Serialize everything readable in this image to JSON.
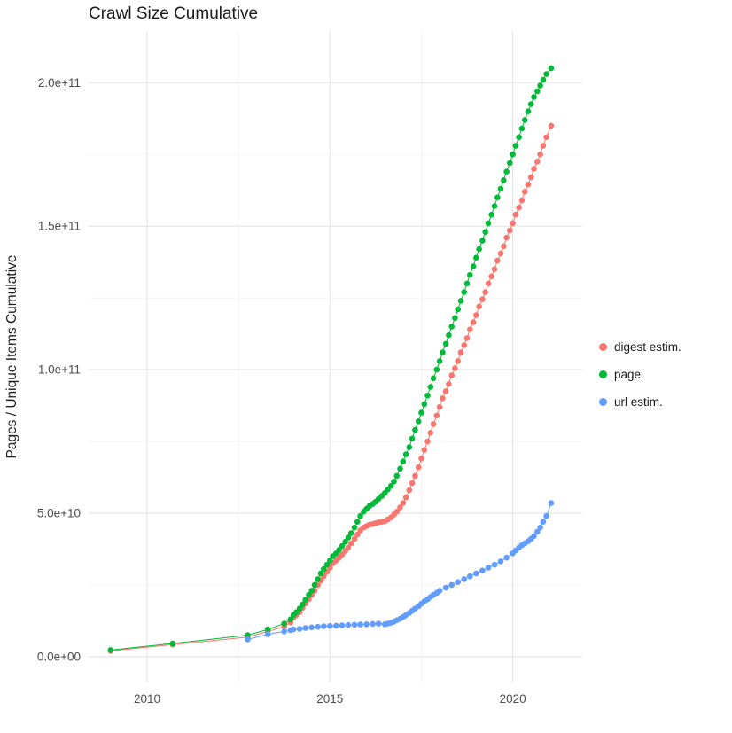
{
  "title": "Crawl Size Cumulative",
  "colors": {
    "background": "#FFFFFF",
    "grid_major": "#E4E4E4",
    "grid_minor": "#F2F2F2",
    "tick_label": "#4D4D4D",
    "axis_title": "#1A1A1A"
  },
  "chart_data": {
    "type": "scatter",
    "title": "Crawl Size Cumulative",
    "xlabel": "",
    "ylabel": "Pages / Unique Items Cumulative",
    "grid": true,
    "legend_position": "right",
    "y_unit": 10000000000.0,
    "y_unit_note": "series point y-values are in units of 1e10 pages",
    "x_range": [
      2008.4,
      2021.9
    ],
    "y_range_e10": [
      -0.9,
      21.8
    ],
    "x_ticks": [
      {
        "v": 2010,
        "label": "2010"
      },
      {
        "v": 2015,
        "label": "2015"
      },
      {
        "v": 2020,
        "label": "2020"
      }
    ],
    "x_minor": [
      2012.5,
      2017.5
    ],
    "y_ticks": [
      {
        "v": 0,
        "label": "0.0e+00"
      },
      {
        "v": 5,
        "label": "5.0e+10"
      },
      {
        "v": 10,
        "label": "1.0e+11"
      },
      {
        "v": 15,
        "label": "1.5e+11"
      },
      {
        "v": 20,
        "label": "2.0e+11"
      }
    ],
    "y_minor": [
      2.5,
      7.5,
      12.5,
      17.5
    ],
    "series": [
      {
        "name": "digest estim.",
        "color": "#F8766D",
        "points": [
          [
            2009.0,
            0.2
          ],
          [
            2010.7,
            0.42
          ],
          [
            2012.75,
            0.68
          ],
          [
            2013.3,
            0.88
          ],
          [
            2013.75,
            1.05
          ],
          [
            2013.92,
            1.2
          ],
          [
            2014.0,
            1.35
          ],
          [
            2014.08,
            1.45
          ],
          [
            2014.17,
            1.55
          ],
          [
            2014.25,
            1.7
          ],
          [
            2014.33,
            1.85
          ],
          [
            2014.42,
            2.0
          ],
          [
            2014.5,
            2.15
          ],
          [
            2014.58,
            2.3
          ],
          [
            2014.67,
            2.5
          ],
          [
            2014.75,
            2.65
          ],
          [
            2014.83,
            2.8
          ],
          [
            2014.92,
            2.95
          ],
          [
            2015.0,
            3.1
          ],
          [
            2015.08,
            3.25
          ],
          [
            2015.17,
            3.35
          ],
          [
            2015.25,
            3.45
          ],
          [
            2015.33,
            3.55
          ],
          [
            2015.42,
            3.68
          ],
          [
            2015.5,
            3.8
          ],
          [
            2015.58,
            3.95
          ],
          [
            2015.67,
            4.1
          ],
          [
            2015.75,
            4.25
          ],
          [
            2015.83,
            4.4
          ],
          [
            2015.92,
            4.5
          ],
          [
            2016.0,
            4.55
          ],
          [
            2016.08,
            4.6
          ],
          [
            2016.17,
            4.62
          ],
          [
            2016.25,
            4.65
          ],
          [
            2016.33,
            4.68
          ],
          [
            2016.42,
            4.7
          ],
          [
            2016.5,
            4.72
          ],
          [
            2016.58,
            4.78
          ],
          [
            2016.67,
            4.85
          ],
          [
            2016.75,
            4.95
          ],
          [
            2016.83,
            5.05
          ],
          [
            2016.92,
            5.2
          ],
          [
            2017.0,
            5.35
          ],
          [
            2017.08,
            5.55
          ],
          [
            2017.17,
            5.8
          ],
          [
            2017.25,
            6.05
          ],
          [
            2017.33,
            6.3
          ],
          [
            2017.42,
            6.6
          ],
          [
            2017.5,
            6.9
          ],
          [
            2017.58,
            7.2
          ],
          [
            2017.67,
            7.5
          ],
          [
            2017.75,
            7.8
          ],
          [
            2017.83,
            8.1
          ],
          [
            2017.92,
            8.4
          ],
          [
            2018.0,
            8.7
          ],
          [
            2018.08,
            9.0
          ],
          [
            2018.17,
            9.25
          ],
          [
            2018.25,
            9.5
          ],
          [
            2018.33,
            9.8
          ],
          [
            2018.42,
            10.05
          ],
          [
            2018.5,
            10.3
          ],
          [
            2018.58,
            10.6
          ],
          [
            2018.67,
            10.85
          ],
          [
            2018.75,
            11.1
          ],
          [
            2018.83,
            11.4
          ],
          [
            2018.92,
            11.65
          ],
          [
            2019.0,
            11.9
          ],
          [
            2019.08,
            12.2
          ],
          [
            2019.17,
            12.45
          ],
          [
            2019.25,
            12.7
          ],
          [
            2019.33,
            13.0
          ],
          [
            2019.42,
            13.25
          ],
          [
            2019.5,
            13.5
          ],
          [
            2019.58,
            13.8
          ],
          [
            2019.67,
            14.05
          ],
          [
            2019.75,
            14.3
          ],
          [
            2019.83,
            14.6
          ],
          [
            2019.92,
            14.85
          ],
          [
            2020.0,
            15.1
          ],
          [
            2020.08,
            15.4
          ],
          [
            2020.17,
            15.65
          ],
          [
            2020.25,
            15.9
          ],
          [
            2020.33,
            16.2
          ],
          [
            2020.42,
            16.45
          ],
          [
            2020.5,
            16.7
          ],
          [
            2020.58,
            17.0
          ],
          [
            2020.67,
            17.25
          ],
          [
            2020.75,
            17.5
          ],
          [
            2020.83,
            17.8
          ],
          [
            2020.92,
            18.1
          ],
          [
            2021.05,
            18.5
          ]
        ]
      },
      {
        "name": "page",
        "color": "#00BA38",
        "points": [
          [
            2009.0,
            0.23
          ],
          [
            2010.7,
            0.46
          ],
          [
            2012.75,
            0.75
          ],
          [
            2013.3,
            0.95
          ],
          [
            2013.75,
            1.15
          ],
          [
            2013.92,
            1.3
          ],
          [
            2014.0,
            1.45
          ],
          [
            2014.08,
            1.55
          ],
          [
            2014.17,
            1.68
          ],
          [
            2014.25,
            1.82
          ],
          [
            2014.33,
            1.98
          ],
          [
            2014.42,
            2.15
          ],
          [
            2014.5,
            2.3
          ],
          [
            2014.58,
            2.5
          ],
          [
            2014.67,
            2.7
          ],
          [
            2014.75,
            2.9
          ],
          [
            2014.83,
            3.05
          ],
          [
            2014.92,
            3.2
          ],
          [
            2015.0,
            3.35
          ],
          [
            2015.08,
            3.5
          ],
          [
            2015.17,
            3.6
          ],
          [
            2015.25,
            3.72
          ],
          [
            2015.33,
            3.85
          ],
          [
            2015.42,
            4.0
          ],
          [
            2015.5,
            4.15
          ],
          [
            2015.58,
            4.3
          ],
          [
            2015.67,
            4.5
          ],
          [
            2015.75,
            4.7
          ],
          [
            2015.83,
            4.9
          ],
          [
            2015.92,
            5.05
          ],
          [
            2016.0,
            5.15
          ],
          [
            2016.08,
            5.25
          ],
          [
            2016.17,
            5.32
          ],
          [
            2016.25,
            5.4
          ],
          [
            2016.33,
            5.5
          ],
          [
            2016.42,
            5.6
          ],
          [
            2016.5,
            5.7
          ],
          [
            2016.58,
            5.82
          ],
          [
            2016.67,
            5.95
          ],
          [
            2016.75,
            6.1
          ],
          [
            2016.83,
            6.3
          ],
          [
            2016.92,
            6.55
          ],
          [
            2017.0,
            6.8
          ],
          [
            2017.08,
            7.05
          ],
          [
            2017.17,
            7.3
          ],
          [
            2017.25,
            7.6
          ],
          [
            2017.33,
            7.9
          ],
          [
            2017.42,
            8.2
          ],
          [
            2017.5,
            8.5
          ],
          [
            2017.58,
            8.8
          ],
          [
            2017.67,
            9.1
          ],
          [
            2017.75,
            9.4
          ],
          [
            2017.83,
            9.7
          ],
          [
            2017.92,
            10.0
          ],
          [
            2018.0,
            10.3
          ],
          [
            2018.08,
            10.6
          ],
          [
            2018.17,
            10.9
          ],
          [
            2018.25,
            11.2
          ],
          [
            2018.33,
            11.5
          ],
          [
            2018.42,
            11.8
          ],
          [
            2018.5,
            12.1
          ],
          [
            2018.58,
            12.4
          ],
          [
            2018.67,
            12.7
          ],
          [
            2018.75,
            13.0
          ],
          [
            2018.83,
            13.3
          ],
          [
            2018.92,
            13.6
          ],
          [
            2019.0,
            13.9
          ],
          [
            2019.08,
            14.2
          ],
          [
            2019.17,
            14.5
          ],
          [
            2019.25,
            14.8
          ],
          [
            2019.33,
            15.1
          ],
          [
            2019.42,
            15.4
          ],
          [
            2019.5,
            15.7
          ],
          [
            2019.58,
            16.0
          ],
          [
            2019.67,
            16.3
          ],
          [
            2019.75,
            16.6
          ],
          [
            2019.83,
            16.9
          ],
          [
            2019.92,
            17.2
          ],
          [
            2020.0,
            17.5
          ],
          [
            2020.08,
            17.8
          ],
          [
            2020.17,
            18.1
          ],
          [
            2020.25,
            18.4
          ],
          [
            2020.33,
            18.7
          ],
          [
            2020.42,
            19.0
          ],
          [
            2020.5,
            19.25
          ],
          [
            2020.58,
            19.5
          ],
          [
            2020.67,
            19.7
          ],
          [
            2020.75,
            19.9
          ],
          [
            2020.83,
            20.1
          ],
          [
            2020.92,
            20.3
          ],
          [
            2021.05,
            20.5
          ]
        ]
      },
      {
        "name": "url estim.",
        "color": "#619CFF",
        "points": [
          [
            2012.75,
            0.6
          ],
          [
            2013.3,
            0.78
          ],
          [
            2013.75,
            0.88
          ],
          [
            2013.92,
            0.92
          ],
          [
            2014.0,
            0.95
          ],
          [
            2014.17,
            0.97
          ],
          [
            2014.33,
            1.0
          ],
          [
            2014.5,
            1.02
          ],
          [
            2014.67,
            1.04
          ],
          [
            2014.83,
            1.06
          ],
          [
            2015.0,
            1.07
          ],
          [
            2015.17,
            1.08
          ],
          [
            2015.33,
            1.09
          ],
          [
            2015.5,
            1.1
          ],
          [
            2015.67,
            1.11
          ],
          [
            2015.83,
            1.12
          ],
          [
            2016.0,
            1.13
          ],
          [
            2016.17,
            1.14
          ],
          [
            2016.33,
            1.15
          ],
          [
            2016.5,
            1.13
          ],
          [
            2016.58,
            1.15
          ],
          [
            2016.67,
            1.18
          ],
          [
            2016.75,
            1.22
          ],
          [
            2016.83,
            1.27
          ],
          [
            2016.92,
            1.32
          ],
          [
            2017.0,
            1.38
          ],
          [
            2017.08,
            1.45
          ],
          [
            2017.17,
            1.52
          ],
          [
            2017.25,
            1.6
          ],
          [
            2017.33,
            1.68
          ],
          [
            2017.42,
            1.76
          ],
          [
            2017.5,
            1.85
          ],
          [
            2017.58,
            1.93
          ],
          [
            2017.67,
            2.0
          ],
          [
            2017.75,
            2.08
          ],
          [
            2017.83,
            2.15
          ],
          [
            2017.92,
            2.22
          ],
          [
            2018.0,
            2.3
          ],
          [
            2018.17,
            2.4
          ],
          [
            2018.33,
            2.5
          ],
          [
            2018.5,
            2.6
          ],
          [
            2018.67,
            2.7
          ],
          [
            2018.83,
            2.8
          ],
          [
            2019.0,
            2.9
          ],
          [
            2019.17,
            3.0
          ],
          [
            2019.33,
            3.1
          ],
          [
            2019.5,
            3.2
          ],
          [
            2019.67,
            3.32
          ],
          [
            2019.83,
            3.45
          ],
          [
            2020.0,
            3.6
          ],
          [
            2020.08,
            3.7
          ],
          [
            2020.17,
            3.8
          ],
          [
            2020.25,
            3.88
          ],
          [
            2020.33,
            3.95
          ],
          [
            2020.42,
            4.02
          ],
          [
            2020.5,
            4.1
          ],
          [
            2020.58,
            4.2
          ],
          [
            2020.67,
            4.35
          ],
          [
            2020.75,
            4.5
          ],
          [
            2020.83,
            4.7
          ],
          [
            2020.92,
            4.9
          ],
          [
            2021.05,
            5.35
          ]
        ]
      }
    ]
  }
}
